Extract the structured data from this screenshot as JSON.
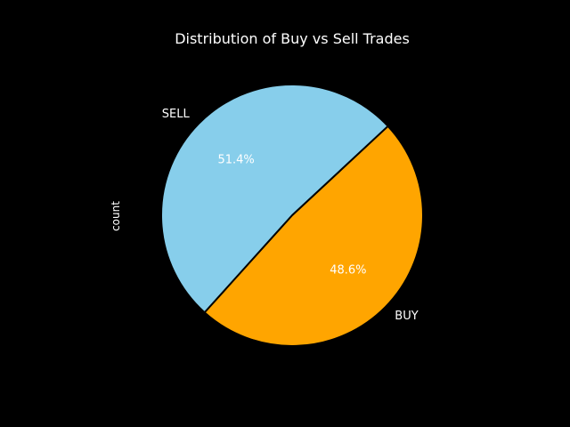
{
  "chart_data": {
    "type": "pie",
    "title": "Distribution of Buy vs Sell Trades",
    "ylabel": "count",
    "slices": [
      {
        "label": "BUY",
        "percent": 48.6,
        "pct_label": "48.6%",
        "color": "#FFA500"
      },
      {
        "label": "SELL",
        "percent": 51.4,
        "pct_label": "51.4%",
        "color": "#87CEEB"
      }
    ],
    "edge_color": "#000000",
    "background_color": "#000000",
    "text_color": "#ffffff"
  }
}
